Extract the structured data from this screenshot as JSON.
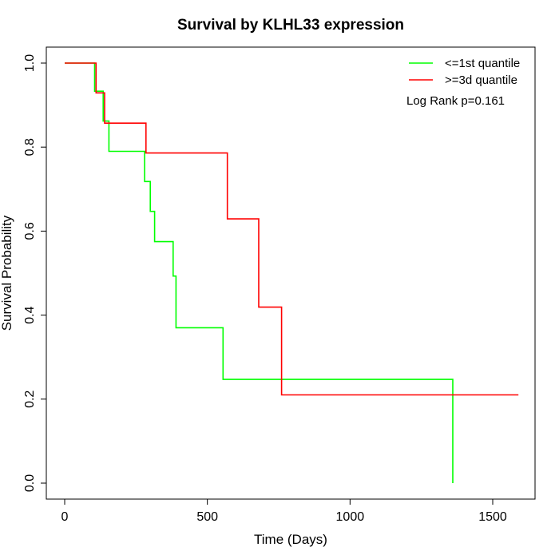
{
  "chart_data": {
    "type": "line",
    "subtype": "kaplan-meier step",
    "title": "Survival by KLHL33 expression",
    "xlabel": "Time (Days)",
    "ylabel": "Survival Probability",
    "xlim": [
      0,
      1650
    ],
    "ylim": [
      0,
      1.05
    ],
    "xticks": [
      0,
      500,
      1000,
      1500
    ],
    "xtick_labels": [
      "0",
      "500",
      "1000",
      "1500"
    ],
    "yticks": [
      0.0,
      0.2,
      0.4,
      0.6,
      0.8,
      1.0
    ],
    "ytick_labels": [
      "0.0",
      "0.2",
      "0.4",
      "0.6",
      "0.8",
      "1.0"
    ],
    "grid": false,
    "legend_position": "top-right",
    "annotation": "Log Rank p=0.161",
    "series": [
      {
        "name": "<=1st quantile",
        "color": "#00ff00",
        "x": [
          0,
          105,
          105,
          135,
          135,
          155,
          155,
          280,
          280,
          300,
          300,
          315,
          315,
          380,
          380,
          390,
          390,
          555,
          555,
          1360,
          1360
        ],
        "y": [
          1.0,
          1.0,
          0.933,
          0.933,
          0.862,
          0.862,
          0.79,
          0.79,
          0.718,
          0.718,
          0.647,
          0.647,
          0.575,
          0.575,
          0.493,
          0.493,
          0.37,
          0.37,
          0.247,
          0.247,
          0.0
        ]
      },
      {
        "name": ">=3d quantile",
        "color": "#ff0000",
        "x": [
          0,
          110,
          110,
          140,
          140,
          285,
          285,
          570,
          570,
          680,
          680,
          760,
          760,
          1590
        ],
        "y": [
          1.0,
          1.0,
          0.929,
          0.929,
          0.857,
          0.857,
          0.786,
          0.786,
          0.629,
          0.629,
          0.419,
          0.419,
          0.21,
          0.21
        ]
      }
    ]
  }
}
